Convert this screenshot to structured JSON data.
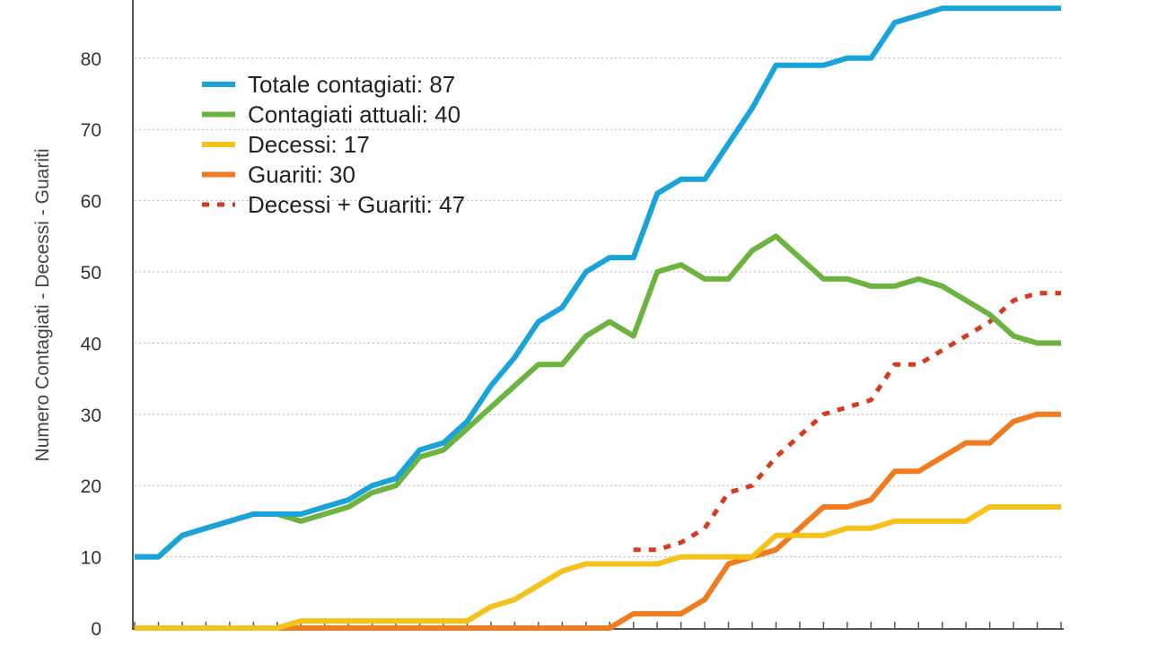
{
  "chart_data": {
    "type": "line",
    "ylabel": "Numero Contagiati - Decessi - Guariti",
    "xlabel": "",
    "ylim": [
      0,
      90
    ],
    "yticks": [
      0,
      10,
      20,
      30,
      40,
      50,
      60,
      70,
      80
    ],
    "grid": "horizontal-dotted",
    "legend_position": "top-left",
    "x": [
      0,
      1,
      2,
      3,
      4,
      5,
      6,
      7,
      8,
      9,
      10,
      11,
      12,
      13,
      14,
      15,
      16,
      17,
      18,
      19,
      20,
      21,
      22,
      23,
      24,
      25,
      26,
      27,
      28,
      29,
      30,
      31,
      32,
      33,
      34,
      35,
      36,
      37,
      38,
      39
    ],
    "series": [
      {
        "name": "Totale contagiati: 87",
        "color": "#1aa3d9",
        "dash": "solid",
        "values": [
          10,
          10,
          13,
          14,
          15,
          16,
          16,
          16,
          17,
          18,
          20,
          21,
          25,
          26,
          29,
          34,
          38,
          43,
          45,
          50,
          52,
          52,
          61,
          63,
          63,
          68,
          73,
          79,
          79,
          79,
          80,
          80,
          85,
          86,
          87,
          87,
          87,
          87,
          87,
          87
        ]
      },
      {
        "name": "Contagiati attuali: 40",
        "color": "#6db33f",
        "dash": "solid",
        "values": [
          10,
          10,
          13,
          14,
          15,
          16,
          16,
          15,
          16,
          17,
          19,
          20,
          24,
          25,
          28,
          31,
          34,
          37,
          37,
          41,
          43,
          41,
          50,
          51,
          49,
          49,
          53,
          55,
          52,
          49,
          49,
          48,
          48,
          49,
          48,
          46,
          44,
          41,
          40,
          40
        ]
      },
      {
        "name": "Decessi: 17",
        "color": "#f5c21b",
        "dash": "solid",
        "values": [
          0,
          0,
          0,
          0,
          0,
          0,
          0,
          1,
          1,
          1,
          1,
          1,
          1,
          1,
          1,
          3,
          4,
          6,
          8,
          9,
          9,
          9,
          9,
          10,
          10,
          10,
          10,
          13,
          13,
          13,
          14,
          14,
          15,
          15,
          15,
          15,
          17,
          17,
          17,
          17
        ]
      },
      {
        "name": "Guariti: 30",
        "color": "#f07c1f",
        "dash": "solid",
        "values": [
          0,
          0,
          0,
          0,
          0,
          0,
          0,
          0,
          0,
          0,
          0,
          0,
          0,
          0,
          0,
          0,
          0,
          0,
          0,
          0,
          0,
          2,
          2,
          2,
          4,
          9,
          10,
          11,
          14,
          17,
          17,
          18,
          22,
          22,
          24,
          26,
          26,
          29,
          30,
          30
        ]
      },
      {
        "name": "Decessi + Guariti: 47",
        "color": "#d63a1f",
        "dash": "dotted",
        "values": [
          null,
          null,
          null,
          null,
          null,
          null,
          null,
          null,
          null,
          null,
          null,
          null,
          null,
          null,
          null,
          null,
          null,
          null,
          null,
          null,
          null,
          11,
          11,
          12,
          14,
          19,
          20,
          24,
          27,
          30,
          31,
          32,
          37,
          37,
          39,
          41,
          43,
          46,
          47,
          47
        ]
      }
    ]
  }
}
